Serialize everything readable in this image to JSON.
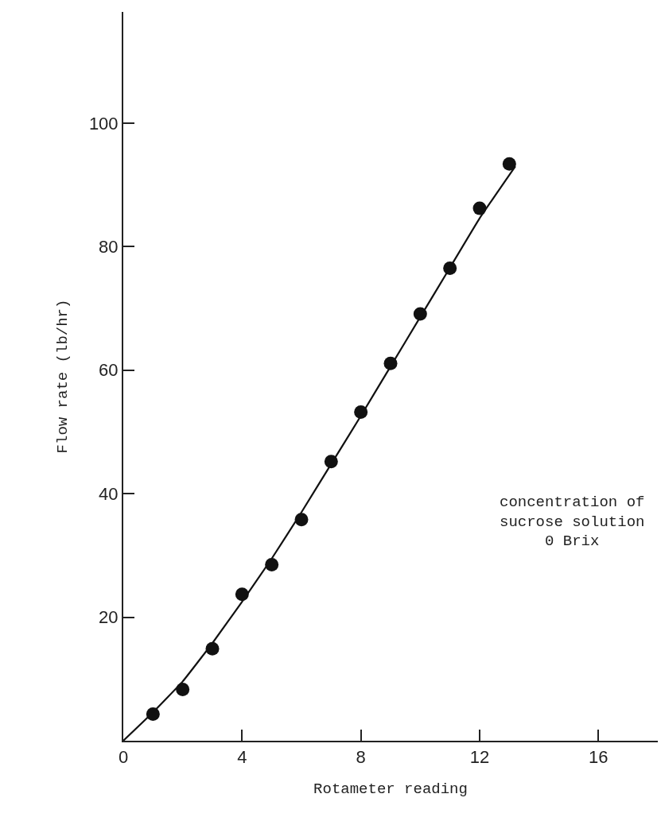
{
  "chart_data": {
    "type": "scatter",
    "xlabel": "Rotameter reading",
    "ylabel": "Flow rate (lb/hr)",
    "x": [
      1,
      2,
      3,
      4,
      5,
      6,
      7,
      8,
      9,
      10,
      11,
      12,
      13
    ],
    "series": [
      {
        "color": "#111111",
        "marker": "circle",
        "values": [
          4.3,
          8.3,
          14.9,
          23.7,
          28.5,
          35.8,
          45.2,
          53.2,
          61.1,
          69.1,
          76.5,
          86.2,
          93.4
        ]
      },
      {
        "type": "line",
        "color": "#111111",
        "marker": "none",
        "line_style": "solid",
        "x": [
          0,
          1,
          2,
          3,
          4,
          5,
          6,
          7,
          8,
          9,
          10,
          11,
          12,
          13.2
        ],
        "values": [
          0,
          4.6,
          9.6,
          15.8,
          22.5,
          29.5,
          37,
          44.8,
          52.6,
          60.6,
          68.6,
          76.6,
          84.6,
          93
        ]
      }
    ],
    "xlim": [
      0,
      18
    ],
    "xticks": [
      0,
      4,
      8,
      12,
      16
    ],
    "ylim": [
      0,
      118
    ],
    "yticks": [
      20,
      40,
      60,
      80,
      100
    ],
    "annotations": [
      "concentration of\nsucrose solution\n0 Brix"
    ]
  }
}
